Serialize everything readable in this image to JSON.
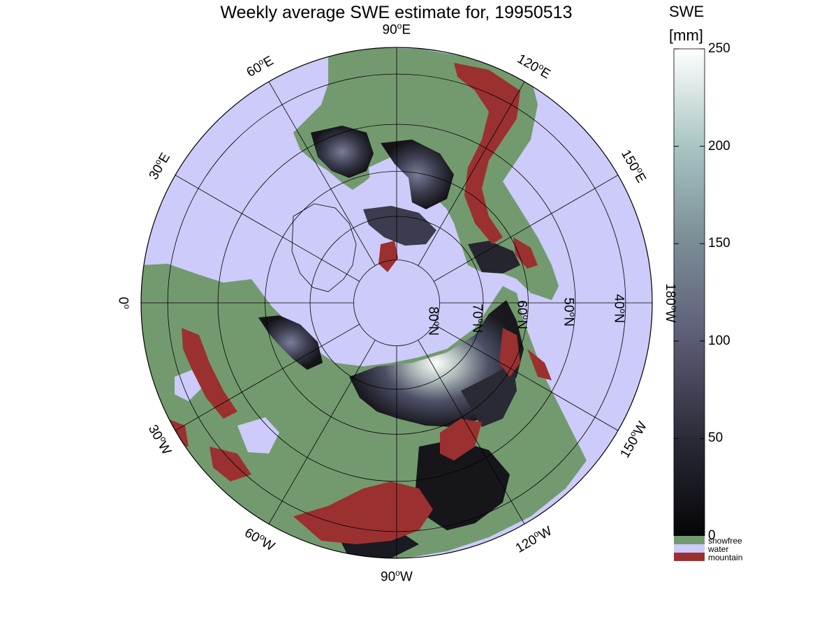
{
  "title": "Weekly average SWE estimate for, 19950513",
  "colorbar": {
    "title_line1": "SWE",
    "title_line2": "[mm]",
    "ticks": [
      0,
      50,
      100,
      150,
      200,
      250
    ],
    "range": [
      0,
      250
    ],
    "colors": {
      "low": "#0b0b10",
      "mid": "#5e6079",
      "high": "#ffffff"
    }
  },
  "legend": [
    {
      "label": "snowfree",
      "color": "#739a6f"
    },
    {
      "label": "water",
      "color": "#cccbf9"
    },
    {
      "label": "mountain",
      "color": "#9b3030"
    }
  ],
  "longitude_labels": [
    {
      "text": "90",
      "suffix": "W",
      "lon": -90
    },
    {
      "text": "60",
      "suffix": "W",
      "lon": -60
    },
    {
      "text": "30",
      "suffix": "W",
      "lon": -30
    },
    {
      "text": "0",
      "suffix": "",
      "lon": 0
    },
    {
      "text": "30",
      "suffix": "E",
      "lon": 30
    },
    {
      "text": "60",
      "suffix": "E",
      "lon": 60
    },
    {
      "text": "90",
      "suffix": "E",
      "lon": 90
    },
    {
      "text": "120",
      "suffix": "E",
      "lon": 120
    },
    {
      "text": "150",
      "suffix": "E",
      "lon": 150
    },
    {
      "text": "180",
      "suffix": "W",
      "lon": 180
    },
    {
      "text": "150",
      "suffix": "W",
      "lon": -150
    },
    {
      "text": "120",
      "suffix": "W",
      "lon": -120
    }
  ],
  "latitude_labels": [
    {
      "text": "80",
      "suffix": "N",
      "lat": 80
    },
    {
      "text": "70",
      "suffix": "N",
      "lat": 70
    },
    {
      "text": "60",
      "suffix": "N",
      "lat": 60
    },
    {
      "text": "50",
      "suffix": "N",
      "lat": 50
    },
    {
      "text": "40",
      "suffix": "N",
      "lat": 40
    }
  ],
  "map": {
    "projection": "north polar stereographic",
    "min_latitude": 35,
    "colors": {
      "water": "#cccbf9",
      "snowfree": "#739a6f",
      "mountain": "#9b3030",
      "grid": "#000000"
    }
  }
}
